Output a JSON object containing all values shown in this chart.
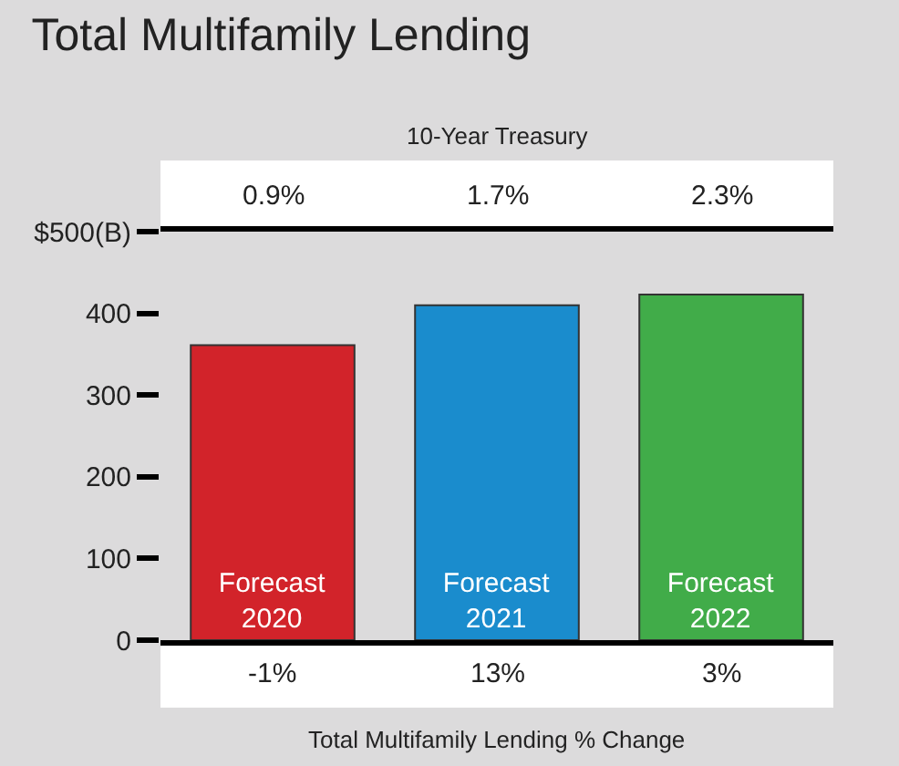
{
  "chart_data": {
    "type": "bar",
    "title": "Total Multifamily Lending",
    "categories": [
      "Forecast\n2020",
      "Forecast\n2021",
      "Forecast\n2022"
    ],
    "values": [
      361,
      410,
      423
    ],
    "colors": [
      "#d2232a",
      "#1a8ccd",
      "#41ac49"
    ],
    "ylim": [
      0,
      500
    ],
    "yticks": [
      0,
      100,
      200,
      300,
      400,
      {
        "value": 500,
        "label": "$500(B)"
      }
    ],
    "xlabel": "Total Multifamily Lending % Change",
    "annotations": [
      "10-Year Treasury",
      "0.9%",
      "1.7%",
      "2.3%",
      "-1%",
      "13%",
      "3%"
    ],
    "grid": false,
    "legend": false
  }
}
